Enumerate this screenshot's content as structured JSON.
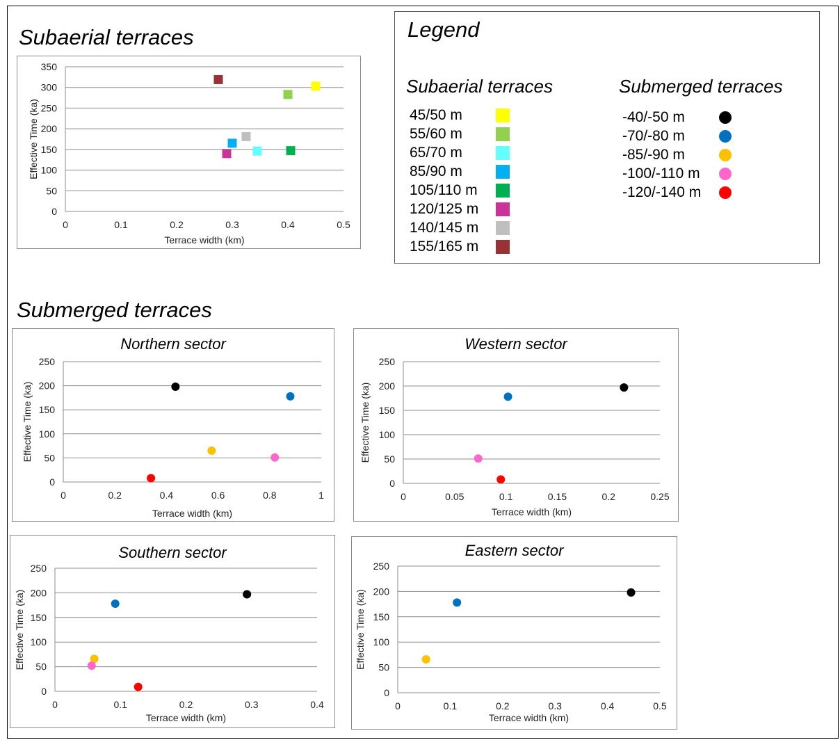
{
  "titles": {
    "subaerial": "Subaerial terraces",
    "submerged": "Submerged terraces"
  },
  "legend": {
    "title": "Legend",
    "subaerial_heading": "Subaerial terraces",
    "submerged_heading": "Submerged terraces",
    "subaerial_items": [
      {
        "label": "45/50 m",
        "color": "#ffff00"
      },
      {
        "label": "55/60 m",
        "color": "#92d050"
      },
      {
        "label": "65/70 m",
        "color": "#66ffff"
      },
      {
        "label": "85/90 m",
        "color": "#00b0f0"
      },
      {
        "label": "105/110 m",
        "color": "#00b050"
      },
      {
        "label": "120/125 m",
        "color": "#cc3399"
      },
      {
        "label": "140/145 m",
        "color": "#bfbfbf"
      },
      {
        "label": "155/165 m",
        "color": "#993333"
      }
    ],
    "submerged_items": [
      {
        "label": "-40/-50 m",
        "color": "#000000"
      },
      {
        "label": "-70/-80 m",
        "color": "#0070c0"
      },
      {
        "label": "-85/-90 m",
        "color": "#ffc000"
      },
      {
        "label": "-100/-110 m",
        "color": "#ff66cc"
      },
      {
        "label": "-120/-140 m",
        "color": "#ff0000"
      }
    ]
  },
  "chart_data": [
    {
      "id": "subaerial",
      "type": "scatter",
      "title": "",
      "xlabel": "Terrace width (km)",
      "ylabel": "Effective Time (ka)",
      "xlim": [
        0,
        0.5
      ],
      "ylim": [
        0,
        350
      ],
      "xticks": [
        "0",
        "0.1",
        "0.2",
        "0.3",
        "0.4",
        "0.5"
      ],
      "yticks": [
        "0",
        "50",
        "100",
        "150",
        "200",
        "250",
        "300",
        "350"
      ],
      "grid": true,
      "marker": "square",
      "points": [
        {
          "series": "45/50 m",
          "x": 0.45,
          "y": 303,
          "color": "#ffff00"
        },
        {
          "series": "55/60 m",
          "x": 0.4,
          "y": 283,
          "color": "#92d050"
        },
        {
          "series": "85/90 m",
          "x": 0.3,
          "y": 165,
          "color": "#00b0f0"
        },
        {
          "series": "65/70 m",
          "x": 0.345,
          "y": 146,
          "color": "#66ffff"
        },
        {
          "series": "105/110 m",
          "x": 0.405,
          "y": 147,
          "color": "#00b050"
        },
        {
          "series": "120/125 m",
          "x": 0.29,
          "y": 140,
          "color": "#cc3399"
        },
        {
          "series": "140/145 m",
          "x": 0.325,
          "y": 181,
          "color": "#bfbfbf"
        },
        {
          "series": "155/165 m",
          "x": 0.275,
          "y": 319,
          "color": "#993333"
        }
      ]
    },
    {
      "id": "northern",
      "type": "scatter",
      "title": "Northern sector",
      "xlabel": "Terrace width (km)",
      "ylabel": "Effective Time (ka)",
      "xlim": [
        0,
        1
      ],
      "ylim": [
        0,
        250
      ],
      "xticks": [
        "0",
        "0.2",
        "0.4",
        "0.6",
        "0.8",
        "1"
      ],
      "yticks": [
        "0",
        "50",
        "100",
        "150",
        "200",
        "250"
      ],
      "grid": true,
      "marker": "circle",
      "points": [
        {
          "series": "-40/-50 m",
          "x": 0.435,
          "y": 198,
          "color": "#000000"
        },
        {
          "series": "-70/-80 m",
          "x": 0.88,
          "y": 178,
          "color": "#0070c0"
        },
        {
          "series": "-85/-90 m",
          "x": 0.575,
          "y": 65,
          "color": "#ffc000"
        },
        {
          "series": "-100/-110 m",
          "x": 0.82,
          "y": 51,
          "color": "#ff66cc"
        },
        {
          "series": "-120/-140 m",
          "x": 0.34,
          "y": 8,
          "color": "#ff0000"
        }
      ]
    },
    {
      "id": "western",
      "type": "scatter",
      "title": "Western sector",
      "xlabel": "Terrace width (km)",
      "ylabel": "Effective Time (ka)",
      "xlim": [
        0,
        0.25
      ],
      "ylim": [
        0,
        250
      ],
      "xticks": [
        "0",
        "0.05",
        "0.1",
        "0.15",
        "0.2",
        "0.25"
      ],
      "yticks": [
        "0",
        "50",
        "100",
        "150",
        "200",
        "250"
      ],
      "grid": true,
      "marker": "circle",
      "points": [
        {
          "series": "-40/-50 m",
          "x": 0.215,
          "y": 197,
          "color": "#000000"
        },
        {
          "series": "-70/-80 m",
          "x": 0.102,
          "y": 178,
          "color": "#0070c0"
        },
        {
          "series": "-100/-110 m",
          "x": 0.073,
          "y": 51,
          "color": "#ff66cc"
        },
        {
          "series": "-120/-140 m",
          "x": 0.095,
          "y": 8,
          "color": "#ff0000"
        }
      ]
    },
    {
      "id": "southern",
      "type": "scatter",
      "title": "Southern sector",
      "xlabel": "Terrace width (km)",
      "ylabel": "Effective Time (ka)",
      "xlim": [
        0,
        0.4
      ],
      "ylim": [
        0,
        250
      ],
      "xticks": [
        "0",
        "0.1",
        "0.2",
        "0.3",
        "0.4"
      ],
      "yticks": [
        "0",
        "50",
        "100",
        "150",
        "200",
        "250"
      ],
      "grid": true,
      "marker": "circle",
      "points": [
        {
          "series": "-40/-50 m",
          "x": 0.293,
          "y": 197,
          "color": "#000000"
        },
        {
          "series": "-70/-80 m",
          "x": 0.092,
          "y": 178,
          "color": "#0070c0"
        },
        {
          "series": "-85/-90 m",
          "x": 0.06,
          "y": 66,
          "color": "#ffc000"
        },
        {
          "series": "-100/-110 m",
          "x": 0.056,
          "y": 52,
          "color": "#ff66cc"
        },
        {
          "series": "-120/-140 m",
          "x": 0.127,
          "y": 9,
          "color": "#ff0000"
        }
      ]
    },
    {
      "id": "eastern",
      "type": "scatter",
      "title": "Eastern sector",
      "xlabel": "Terrace width (km)",
      "ylabel": "Effective Time (ka)",
      "xlim": [
        0,
        0.5
      ],
      "ylim": [
        0,
        250
      ],
      "xticks": [
        "0",
        "0.1",
        "0.2",
        "0.3",
        "0.4",
        "0.5"
      ],
      "yticks": [
        "0",
        "50",
        "100",
        "150",
        "200",
        "250"
      ],
      "grid": true,
      "marker": "circle",
      "points": [
        {
          "series": "-40/-50 m",
          "x": 0.445,
          "y": 198,
          "color": "#000000"
        },
        {
          "series": "-70/-80 m",
          "x": 0.113,
          "y": 178,
          "color": "#0070c0"
        },
        {
          "series": "-85/-90 m",
          "x": 0.054,
          "y": 66,
          "color": "#ffc000"
        }
      ]
    }
  ]
}
